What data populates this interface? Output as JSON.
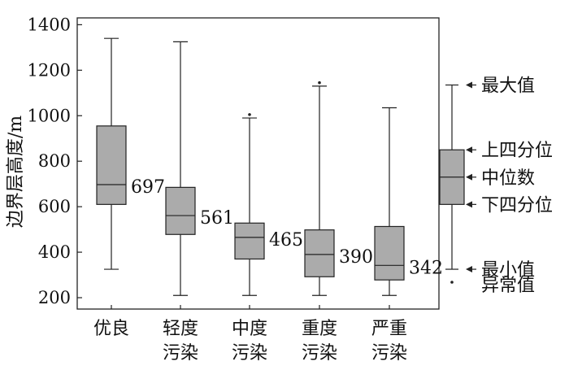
{
  "chart_data": {
    "type": "boxplot",
    "ylabel": "边界层高度/m",
    "ylim": [
      150,
      1430
    ],
    "yticks": [
      200,
      400,
      600,
      800,
      1000,
      1200,
      1400
    ],
    "ytick_labels": [
      "200",
      "400",
      "600",
      "800",
      "1000",
      "1200",
      "1400"
    ],
    "categories": [
      [
        "优良"
      ],
      [
        "轻度",
        "污染"
      ],
      [
        "中度",
        "污染"
      ],
      [
        "重度",
        "污染"
      ],
      [
        "严重",
        "污染"
      ]
    ],
    "boxes": [
      {
        "min": 325,
        "q1": 610,
        "median": 697,
        "q3": 955,
        "max": 1340,
        "outliers": [],
        "median_label": "697"
      },
      {
        "min": 210,
        "q1": 478,
        "median": 561,
        "q3": 685,
        "max": 1325,
        "outliers": [],
        "median_label": "561"
      },
      {
        "min": 210,
        "q1": 370,
        "median": 465,
        "q3": 528,
        "max": 990,
        "outliers": [
          1005
        ],
        "median_label": "465"
      },
      {
        "min": 210,
        "q1": 292,
        "median": 390,
        "q3": 498,
        "max": 1130,
        "outliers": [
          1145
        ],
        "median_label": "390"
      },
      {
        "min": 210,
        "q1": 278,
        "median": 342,
        "q3": 513,
        "max": 1035,
        "outliers": [],
        "median_label": "342"
      }
    ],
    "legend": {
      "box": {
        "min": 325,
        "q1": 610,
        "median": 730,
        "q3": 850,
        "max": 1135
      },
      "labels": {
        "max": "最大值",
        "q3": "上四分位",
        "median": "中位数",
        "q1": "下四分位",
        "min": "最小值",
        "outlier": "异常值"
      }
    }
  }
}
